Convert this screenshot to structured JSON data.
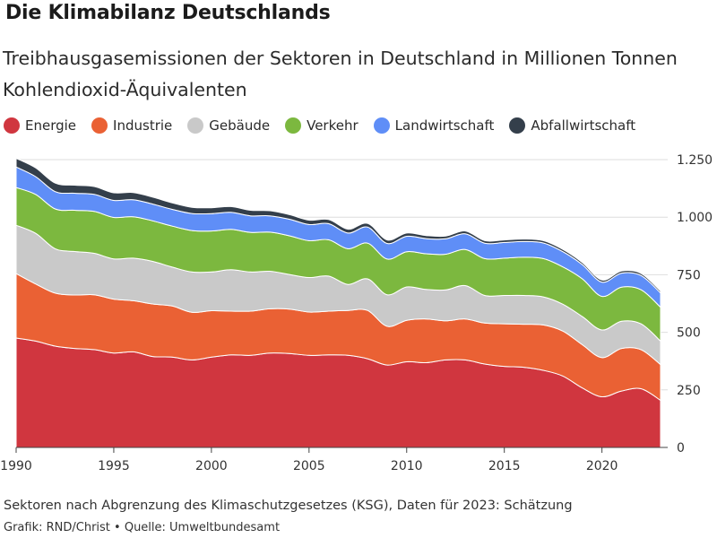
{
  "title": "Die Klimabilanz Deutschlands",
  "subtitle": "Treibhausgasemissionen der Sektoren in Deutschland in Millionen Tonnen Kohlendioxid-Äquivalenten",
  "footnote": "Sektoren nach Abgrenzung des Klimaschutzgesetzes (KSG), Daten für 2023: Schätzung",
  "credits": "Grafik: RND/Christ • Quelle: Umweltbundesamt",
  "chart_data": {
    "type": "area",
    "stacked": true,
    "title": "Die Klimabilanz Deutschlands",
    "subtitle": "Treibhausgasemissionen der Sektoren in Deutschland in Millionen Tonnen Kohlendioxid-Äquivalenten",
    "xlabel": "",
    "ylabel": "",
    "xlim": [
      1990,
      2023
    ],
    "ylim": [
      0,
      1250
    ],
    "x_ticks": [
      1990,
      1995,
      2000,
      2005,
      2010,
      2015,
      2020
    ],
    "x_tick_labels": [
      "1990",
      "1995",
      "2000",
      "2005",
      "2010",
      "2015",
      "2020"
    ],
    "y_ticks": [
      0,
      250,
      500,
      750,
      1000,
      1250
    ],
    "y_tick_labels": [
      "0",
      "250",
      "500",
      "750",
      "1.000",
      "1.250"
    ],
    "y_axis_side": "right",
    "grid": true,
    "legend_position": "top-left",
    "x": [
      1990,
      1991,
      1992,
      1993,
      1994,
      1995,
      1996,
      1997,
      1998,
      1999,
      2000,
      2001,
      2002,
      2003,
      2004,
      2005,
      2006,
      2007,
      2008,
      2009,
      2010,
      2011,
      2012,
      2013,
      2014,
      2015,
      2016,
      2017,
      2018,
      2019,
      2020,
      2021,
      2022,
      2023
    ],
    "series": [
      {
        "name": "Energie",
        "color": "#d0363f",
        "values": [
          475,
          462,
          440,
          430,
          425,
          410,
          415,
          395,
          392,
          380,
          392,
          402,
          400,
          410,
          408,
          400,
          402,
          400,
          385,
          358,
          372,
          368,
          380,
          380,
          362,
          352,
          348,
          335,
          310,
          258,
          220,
          245,
          255,
          205
        ]
      },
      {
        "name": "Industrie",
        "color": "#ea6134",
        "values": [
          280,
          248,
          230,
          232,
          238,
          234,
          222,
          228,
          222,
          207,
          202,
          190,
          192,
          192,
          193,
          188,
          190,
          195,
          210,
          168,
          180,
          190,
          170,
          178,
          178,
          185,
          187,
          197,
          195,
          188,
          170,
          185,
          170,
          155
        ]
      },
      {
        "name": "Gebäude",
        "color": "#c9c9c9",
        "values": [
          210,
          220,
          193,
          189,
          180,
          175,
          185,
          185,
          169,
          175,
          168,
          180,
          170,
          163,
          150,
          150,
          152,
          113,
          137,
          137,
          145,
          128,
          134,
          145,
          120,
          123,
          125,
          122,
          117,
          122,
          120,
          118,
          112,
          102
        ]
      },
      {
        "name": "Verkehr",
        "color": "#7cb83f",
        "values": [
          164,
          169,
          173,
          179,
          182,
          180,
          180,
          176,
          178,
          180,
          178,
          175,
          172,
          170,
          168,
          160,
          158,
          155,
          155,
          155,
          153,
          155,
          155,
          157,
          160,
          162,
          166,
          166,
          162,
          164,
          146,
          148,
          148,
          147
        ]
      },
      {
        "name": "Landwirtschaft",
        "color": "#5f8ef7",
        "values": [
          89,
          77,
          75,
          74,
          74,
          74,
          74,
          73,
          73,
          74,
          75,
          74,
          72,
          71,
          72,
          70,
          70,
          68,
          70,
          68,
          67,
          66,
          67,
          68,
          67,
          68,
          68,
          68,
          66,
          62,
          62,
          61,
          62,
          62
        ]
      },
      {
        "name": "Abfallwirtschaft",
        "color": "#343f4b",
        "values": [
          38,
          38,
          37,
          35,
          34,
          33,
          31,
          30,
          28,
          27,
          26,
          25,
          24,
          22,
          20,
          19,
          18,
          17,
          16,
          15,
          14,
          13,
          12,
          12,
          11,
          11,
          11,
          10,
          10,
          9,
          9,
          9,
          9,
          8
        ]
      }
    ]
  }
}
